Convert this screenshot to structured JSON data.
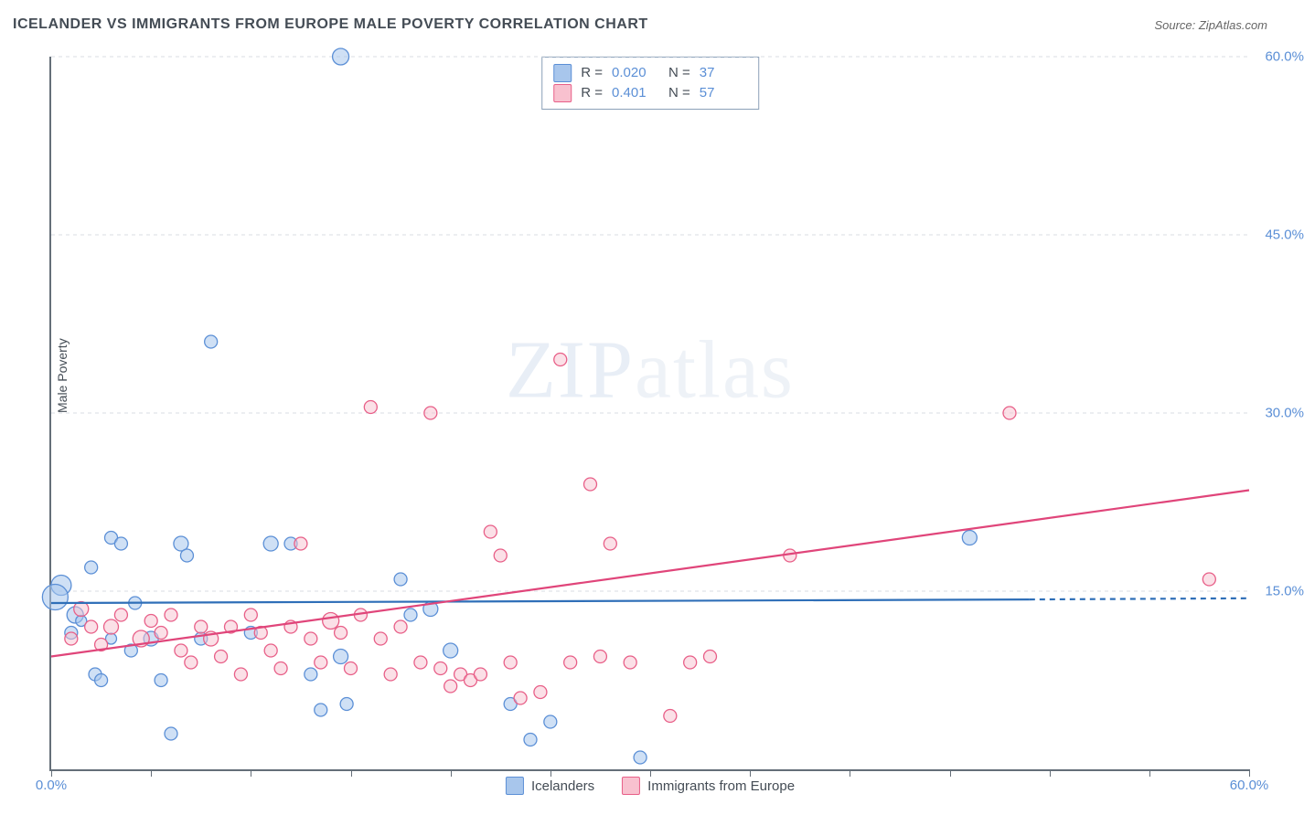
{
  "title": "ICELANDER VS IMMIGRANTS FROM EUROPE MALE POVERTY CORRELATION CHART",
  "source": "Source: ZipAtlas.com",
  "ylabel": "Male Poverty",
  "watermark_zip": "ZIP",
  "watermark_atlas": "atlas",
  "chart": {
    "type": "scatter",
    "xlim": [
      0,
      60
    ],
    "ylim": [
      0,
      60
    ],
    "xtick_labels_shown": {
      "0": "0.0%",
      "60": "60.0%"
    },
    "xtick_positions": [
      0,
      5,
      10,
      15,
      20,
      25,
      30,
      35,
      40,
      45,
      50,
      55,
      60
    ],
    "ytick_positions": [
      15,
      30,
      45,
      60
    ],
    "ytick_labels": {
      "15": "15.0%",
      "30": "30.0%",
      "45": "45.0%",
      "60": "60.0%"
    },
    "grid_color": "#d8dde3",
    "axis_color": "#646e78",
    "background_color": "#ffffff",
    "label_color": "#5b8fd6",
    "series": [
      {
        "name": "Icelanders",
        "fill": "#a8c6ec",
        "stroke": "#5b8fd6",
        "fill_opacity": 0.55,
        "R": "0.020",
        "N": "37",
        "regression": {
          "x1": 0,
          "y1": 14.0,
          "x2": 49,
          "y2": 14.3,
          "dash_x2": 60,
          "dash_y2": 14.4,
          "stroke": "#2f6fb8",
          "width": 2.2
        },
        "points": [
          {
            "x": 0.5,
            "y": 15.5,
            "r": 11
          },
          {
            "x": 0.2,
            "y": 14.5,
            "r": 14
          },
          {
            "x": 1.2,
            "y": 13.0,
            "r": 9
          },
          {
            "x": 1.0,
            "y": 11.5,
            "r": 7
          },
          {
            "x": 1.5,
            "y": 12.5,
            "r": 6
          },
          {
            "x": 2.0,
            "y": 17.0,
            "r": 7
          },
          {
            "x": 2.2,
            "y": 8.0,
            "r": 7
          },
          {
            "x": 2.5,
            "y": 7.5,
            "r": 7
          },
          {
            "x": 3.0,
            "y": 19.5,
            "r": 7
          },
          {
            "x": 3.5,
            "y": 19.0,
            "r": 7
          },
          {
            "x": 4.0,
            "y": 10.0,
            "r": 7
          },
          {
            "x": 4.2,
            "y": 14.0,
            "r": 7
          },
          {
            "x": 5.0,
            "y": 11.0,
            "r": 8
          },
          {
            "x": 5.5,
            "y": 7.5,
            "r": 7
          },
          {
            "x": 6.0,
            "y": 3.0,
            "r": 7
          },
          {
            "x": 6.5,
            "y": 19.0,
            "r": 8
          },
          {
            "x": 6.8,
            "y": 18.0,
            "r": 7
          },
          {
            "x": 7.5,
            "y": 11.0,
            "r": 7
          },
          {
            "x": 8.0,
            "y": 36.0,
            "r": 7
          },
          {
            "x": 10.0,
            "y": 11.5,
            "r": 7
          },
          {
            "x": 11.0,
            "y": 19.0,
            "r": 8
          },
          {
            "x": 12.0,
            "y": 19.0,
            "r": 7
          },
          {
            "x": 13.0,
            "y": 8.0,
            "r": 7
          },
          {
            "x": 13.5,
            "y": 5.0,
            "r": 7
          },
          {
            "x": 14.5,
            "y": 60.0,
            "r": 9
          },
          {
            "x": 14.5,
            "y": 9.5,
            "r": 8
          },
          {
            "x": 14.8,
            "y": 5.5,
            "r": 7
          },
          {
            "x": 17.5,
            "y": 16.0,
            "r": 7
          },
          {
            "x": 19.0,
            "y": 13.5,
            "r": 8
          },
          {
            "x": 20.0,
            "y": 10.0,
            "r": 8
          },
          {
            "x": 23.0,
            "y": 5.5,
            "r": 7
          },
          {
            "x": 24.0,
            "y": 2.5,
            "r": 7
          },
          {
            "x": 25.0,
            "y": 4.0,
            "r": 7
          },
          {
            "x": 29.5,
            "y": 1.0,
            "r": 7
          },
          {
            "x": 46.0,
            "y": 19.5,
            "r": 8
          },
          {
            "x": 18.0,
            "y": 13.0,
            "r": 7
          },
          {
            "x": 3.0,
            "y": 11.0,
            "r": 6
          }
        ]
      },
      {
        "name": "Immigrants from Europe",
        "fill": "#f8c1cf",
        "stroke": "#e85f88",
        "fill_opacity": 0.5,
        "R": "0.401",
        "N": "57",
        "regression": {
          "x1": 0,
          "y1": 9.5,
          "x2": 60,
          "y2": 23.5,
          "stroke": "#e0457a",
          "width": 2.2
        },
        "points": [
          {
            "x": 1.0,
            "y": 11.0,
            "r": 7
          },
          {
            "x": 1.5,
            "y": 13.5,
            "r": 8
          },
          {
            "x": 2.0,
            "y": 12.0,
            "r": 7
          },
          {
            "x": 2.5,
            "y": 10.5,
            "r": 7
          },
          {
            "x": 3.0,
            "y": 12.0,
            "r": 8
          },
          {
            "x": 3.5,
            "y": 13.0,
            "r": 7
          },
          {
            "x": 4.5,
            "y": 11.0,
            "r": 9
          },
          {
            "x": 5.0,
            "y": 12.5,
            "r": 7
          },
          {
            "x": 5.5,
            "y": 11.5,
            "r": 7
          },
          {
            "x": 6.0,
            "y": 13.0,
            "r": 7
          },
          {
            "x": 6.5,
            "y": 10.0,
            "r": 7
          },
          {
            "x": 7.0,
            "y": 9.0,
            "r": 7
          },
          {
            "x": 7.5,
            "y": 12.0,
            "r": 7
          },
          {
            "x": 8.0,
            "y": 11.0,
            "r": 8
          },
          {
            "x": 8.5,
            "y": 9.5,
            "r": 7
          },
          {
            "x": 9.0,
            "y": 12.0,
            "r": 7
          },
          {
            "x": 9.5,
            "y": 8.0,
            "r": 7
          },
          {
            "x": 10.0,
            "y": 13.0,
            "r": 7
          },
          {
            "x": 10.5,
            "y": 11.5,
            "r": 7
          },
          {
            "x": 11.0,
            "y": 10.0,
            "r": 7
          },
          {
            "x": 12.0,
            "y": 12.0,
            "r": 7
          },
          {
            "x": 12.5,
            "y": 19.0,
            "r": 7
          },
          {
            "x": 13.0,
            "y": 11.0,
            "r": 7
          },
          {
            "x": 13.5,
            "y": 9.0,
            "r": 7
          },
          {
            "x": 14.0,
            "y": 12.5,
            "r": 9
          },
          {
            "x": 14.5,
            "y": 11.5,
            "r": 7
          },
          {
            "x": 15.0,
            "y": 8.5,
            "r": 7
          },
          {
            "x": 15.5,
            "y": 13.0,
            "r": 7
          },
          {
            "x": 16.0,
            "y": 30.5,
            "r": 7
          },
          {
            "x": 16.5,
            "y": 11.0,
            "r": 7
          },
          {
            "x": 17.0,
            "y": 8.0,
            "r": 7
          },
          {
            "x": 17.5,
            "y": 12.0,
            "r": 7
          },
          {
            "x": 18.5,
            "y": 9.0,
            "r": 7
          },
          {
            "x": 19.0,
            "y": 30.0,
            "r": 7
          },
          {
            "x": 19.5,
            "y": 8.5,
            "r": 7
          },
          {
            "x": 20.0,
            "y": 7.0,
            "r": 7
          },
          {
            "x": 20.5,
            "y": 8.0,
            "r": 7
          },
          {
            "x": 21.0,
            "y": 7.5,
            "r": 7
          },
          {
            "x": 21.5,
            "y": 8.0,
            "r": 7
          },
          {
            "x": 22.0,
            "y": 20.0,
            "r": 7
          },
          {
            "x": 22.5,
            "y": 18.0,
            "r": 7
          },
          {
            "x": 23.0,
            "y": 9.0,
            "r": 7
          },
          {
            "x": 23.5,
            "y": 6.0,
            "r": 7
          },
          {
            "x": 24.5,
            "y": 6.5,
            "r": 7
          },
          {
            "x": 25.5,
            "y": 34.5,
            "r": 7
          },
          {
            "x": 26.0,
            "y": 9.0,
            "r": 7
          },
          {
            "x": 27.0,
            "y": 24.0,
            "r": 7
          },
          {
            "x": 27.5,
            "y": 9.5,
            "r": 7
          },
          {
            "x": 28.0,
            "y": 19.0,
            "r": 7
          },
          {
            "x": 29.0,
            "y": 9.0,
            "r": 7
          },
          {
            "x": 31.0,
            "y": 4.5,
            "r": 7
          },
          {
            "x": 32.0,
            "y": 9.0,
            "r": 7
          },
          {
            "x": 33.0,
            "y": 9.5,
            "r": 7
          },
          {
            "x": 37.0,
            "y": 18.0,
            "r": 7
          },
          {
            "x": 48.0,
            "y": 30.0,
            "r": 7
          },
          {
            "x": 58.0,
            "y": 16.0,
            "r": 7
          },
          {
            "x": 11.5,
            "y": 8.5,
            "r": 7
          }
        ]
      }
    ]
  },
  "legend_top": {
    "R_label": "R =",
    "N_label": "N ="
  },
  "legend_bottom": {
    "a": "Icelanders",
    "b": "Immigrants from Europe"
  }
}
